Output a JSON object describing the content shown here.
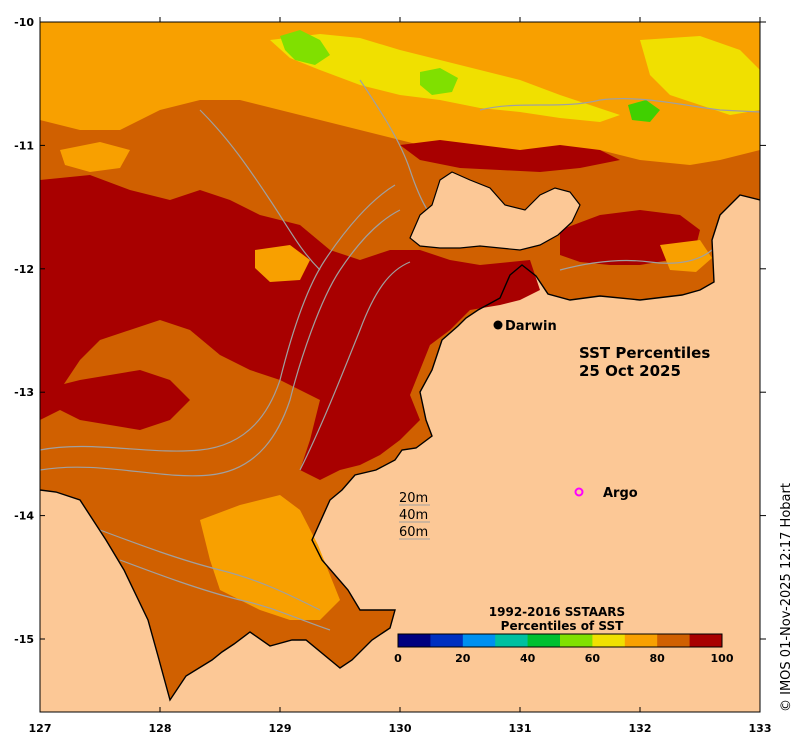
{
  "map": {
    "title_line1": "SST Percentiles",
    "title_line2": "25 Oct 2025",
    "credit": "© IMOS 01-Nov-2025 12:17 Hobart",
    "x_ticks": [
      "127",
      "128",
      "129",
      "130",
      "131",
      "132",
      "133"
    ],
    "y_ticks": [
      "-10",
      "-11",
      "-12",
      "-13",
      "-14",
      "-15"
    ],
    "places": [
      {
        "name": "Darwin",
        "marker": "filled-dot"
      },
      {
        "name": "Argo",
        "marker": "magenta-ring"
      }
    ],
    "contour_legend": [
      "20m",
      "40m",
      "60m"
    ],
    "colorbar": {
      "title_line1": "1992-2016 SSTAARS",
      "title_line2": "Percentiles of SST",
      "ticks": [
        "0",
        "20",
        "40",
        "60",
        "80",
        "100"
      ],
      "colors": [
        "#00007f",
        "#0030c0",
        "#0090f0",
        "#00c0a0",
        "#00c030",
        "#80e000",
        "#f0e000",
        "#f8a000",
        "#d06000",
        "#a80000"
      ]
    },
    "colors": {
      "land": "#fcc896",
      "p70_80": "#f8a000",
      "p80_90": "#d06000",
      "p90_100": "#a80000",
      "p60_70": "#f0e000",
      "p50_60": "#80e000",
      "contour": "#a0a0a0",
      "coast": "#000000",
      "argo": "#ff00ff"
    }
  }
}
